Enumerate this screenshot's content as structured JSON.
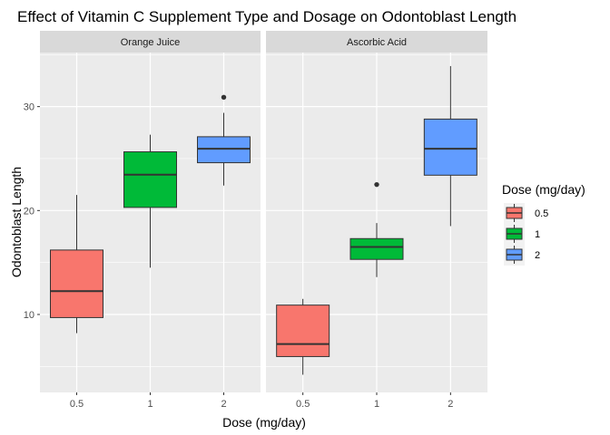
{
  "chart_data": {
    "type": "box",
    "title": "Effect of Vitamin C Supplement Type and Dosage on Odontoblast Length",
    "xlabel": "Dose (mg/day)",
    "ylabel": "Odontoblast Length",
    "categories": [
      "0.5",
      "1",
      "2"
    ],
    "ylim": [
      2.5,
      35.2
    ],
    "yticks": [
      10,
      20,
      30
    ],
    "grid": true,
    "legend": {
      "title": "Dose (mg/day)",
      "position": "right",
      "entries": [
        "0.5",
        "1",
        "2"
      ]
    },
    "colors": {
      "0.5": "#F8766D",
      "1": "#00BA38",
      "2": "#619CFF"
    },
    "panels": [
      {
        "name": "Orange Juice",
        "boxes": [
          {
            "dose": "0.5",
            "min": 8.2,
            "q1": 9.7,
            "median": 12.25,
            "q3": 16.2,
            "max": 21.5,
            "outliers": []
          },
          {
            "dose": "1",
            "min": 14.5,
            "q1": 20.3,
            "median": 23.45,
            "q3": 25.65,
            "max": 27.3,
            "outliers": []
          },
          {
            "dose": "2",
            "min": 22.4,
            "q1": 24.6,
            "median": 25.95,
            "q3": 27.1,
            "max": 29.4,
            "outliers": [
              30.9
            ]
          }
        ]
      },
      {
        "name": "Ascorbic Acid",
        "boxes": [
          {
            "dose": "0.5",
            "min": 4.2,
            "q1": 5.95,
            "median": 7.15,
            "q3": 10.9,
            "max": 11.5,
            "outliers": []
          },
          {
            "dose": "1",
            "min": 13.6,
            "q1": 15.3,
            "median": 16.5,
            "q3": 17.3,
            "max": 18.8,
            "outliers": [
              22.5
            ]
          },
          {
            "dose": "2",
            "min": 18.5,
            "q1": 23.4,
            "median": 25.95,
            "q3": 28.8,
            "max": 33.9,
            "outliers": []
          }
        ]
      }
    ]
  }
}
